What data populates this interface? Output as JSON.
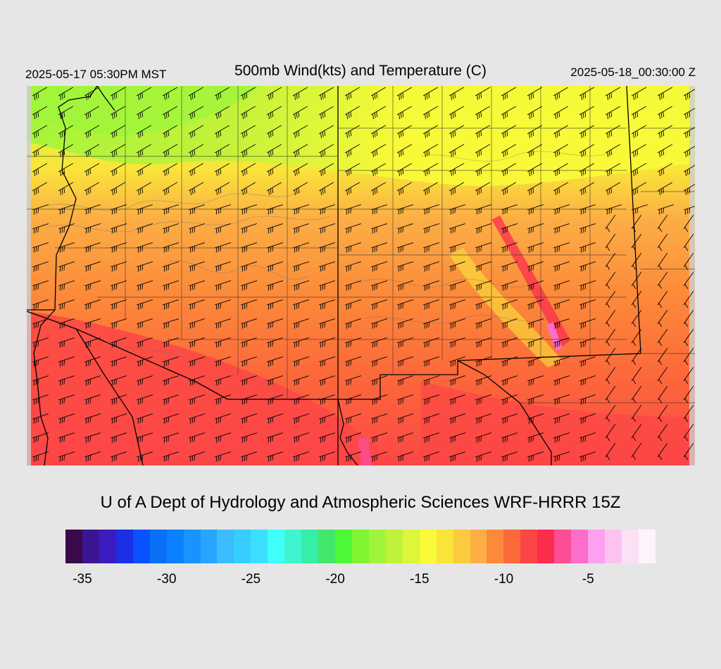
{
  "header": {
    "local_time": "2025-05-17 05:30PM MST",
    "title": "500mb Wind(kts) and Temperature (C)",
    "valid_time": "2025-05-18_00:30:00 Z"
  },
  "credit": "U of A Dept of Hydrology and Atmospheric Sciences WRF-HRRR 15Z",
  "colorbar": {
    "colors": [
      "#3a0a4a",
      "#3c1595",
      "#3a1cbf",
      "#1b2fe6",
      "#0a52ff",
      "#0a6ff7",
      "#0a82ff",
      "#1993ff",
      "#26a6ff",
      "#3bbcff",
      "#36cdff",
      "#3ddfff",
      "#3efffa",
      "#3ff5d0",
      "#35eea8",
      "#42e66a",
      "#4cf935",
      "#7ff531",
      "#a0f53b",
      "#bff23a",
      "#dcf63a",
      "#fafa38",
      "#fae43a",
      "#facb3c",
      "#fcae45",
      "#fc8a3a",
      "#fc6a3a",
      "#fc4646",
      "#fc2c4d",
      "#fc4c93",
      "#fc6ec9",
      "#fca0ef",
      "#fcc3f1",
      "#fce0f6",
      "#fdf3fb"
    ],
    "ticks": [
      "-35",
      "-30",
      "-25",
      "-20",
      "-15",
      "-10",
      "-5"
    ]
  },
  "map": {
    "field": "500mb temperature (C) with wind barbs (kts)",
    "region": "US Southwest (AZ, NM, NV, UT, CO, CA) and northern Mexico"
  }
}
